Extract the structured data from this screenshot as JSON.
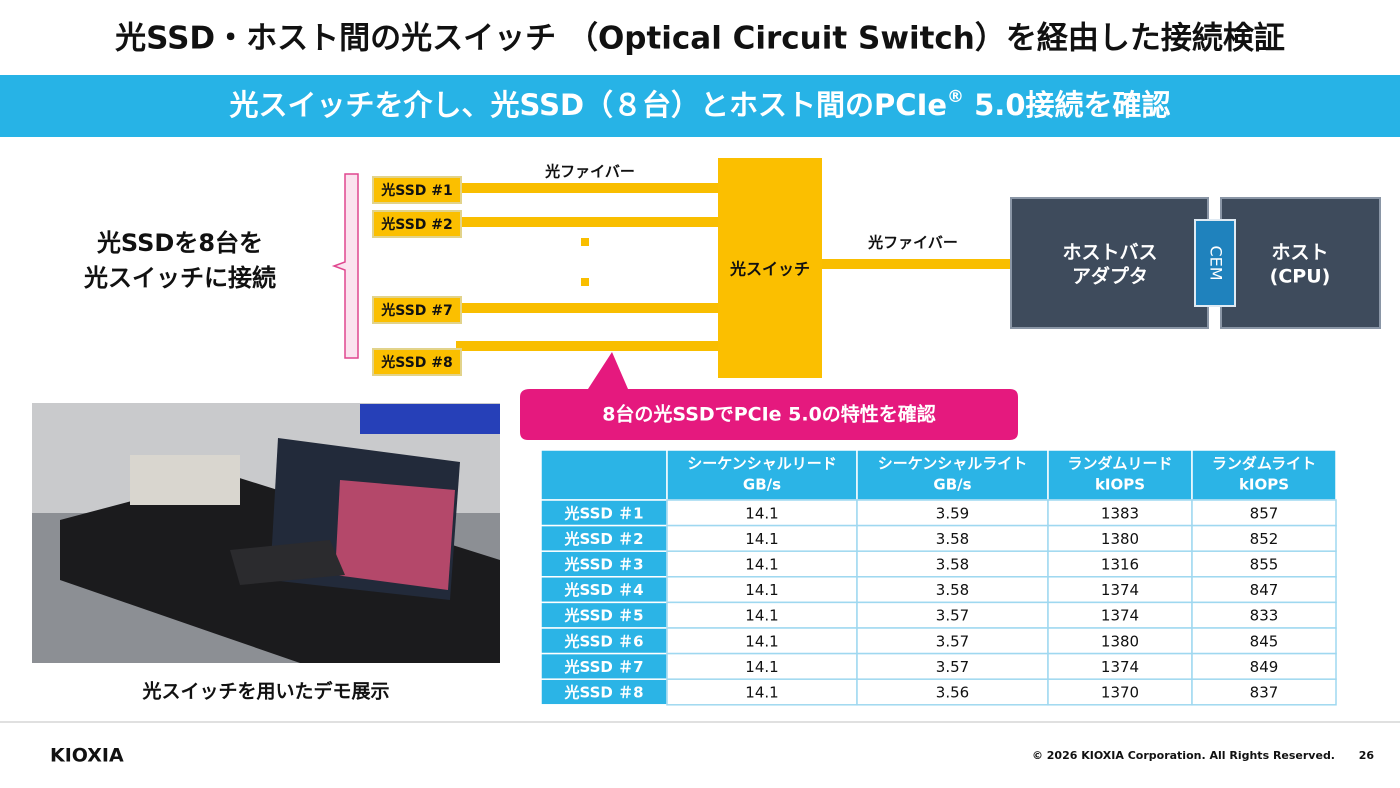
{
  "header": {
    "title": "光SSD・ホスト間の光スイッチ （Optical Circuit Switch）を経由した接続検証",
    "subtitle": [
      "光スイッチを介し、光SSD（８台）とホスト間のPCIe",
      "®",
      " 5.0接続を確認"
    ]
  },
  "summary": {
    "lines": [
      "光SSDを8台を",
      "光スイッチに接続"
    ]
  },
  "diagram": {
    "ssd_labels": [
      "光SSD #1",
      "光SSD #2",
      "光SSD #7",
      "光SSD #8"
    ],
    "fiber_label_left": "光ファイバー",
    "switch_label": "光スイッチ",
    "fiber_label_right": "光ファイバー",
    "adapter_lines": [
      "ホストバス",
      "アダプタ"
    ],
    "cem_label": "CEM",
    "host_lines": [
      "ホスト",
      "(CPU)"
    ]
  },
  "callout": "8台の光SSDでPCIe 5.0の特性を確認",
  "photo_caption": "光スイッチを用いたデモ展示",
  "table": {
    "columns": [
      {
        "name": "シーケンシャルリード",
        "unit": "GB/s"
      },
      {
        "name": "シーケンシャルライト",
        "unit": "GB/s"
      },
      {
        "name": "ランダムリード",
        "unit": "kIOPS"
      },
      {
        "name": "ランダムライト",
        "unit": "kIOPS"
      }
    ],
    "rows": [
      {
        "label": "光SSD ＃1",
        "values": [
          14.1,
          3.59,
          1383,
          857
        ]
      },
      {
        "label": "光SSD ＃2",
        "values": [
          14.1,
          3.58,
          1380,
          852
        ]
      },
      {
        "label": "光SSD ＃3",
        "values": [
          14.1,
          3.58,
          1316,
          855
        ]
      },
      {
        "label": "光SSD ＃4",
        "values": [
          14.1,
          3.58,
          1374,
          847
        ]
      },
      {
        "label": "光SSD ＃5",
        "values": [
          14.1,
          3.57,
          1374,
          833
        ]
      },
      {
        "label": "光SSD ＃6",
        "values": [
          14.1,
          3.57,
          1380,
          845
        ]
      },
      {
        "label": "光SSD ＃7",
        "values": [
          14.1,
          3.57,
          1374,
          849
        ]
      },
      {
        "label": "光SSD ＃8",
        "values": [
          14.1,
          3.56,
          1370,
          837
        ]
      }
    ]
  },
  "footer": {
    "logo": "KIOXIA",
    "copyright": "© 2026 KIOXIA Corporation. All Rights Reserved.",
    "page": 26
  }
}
